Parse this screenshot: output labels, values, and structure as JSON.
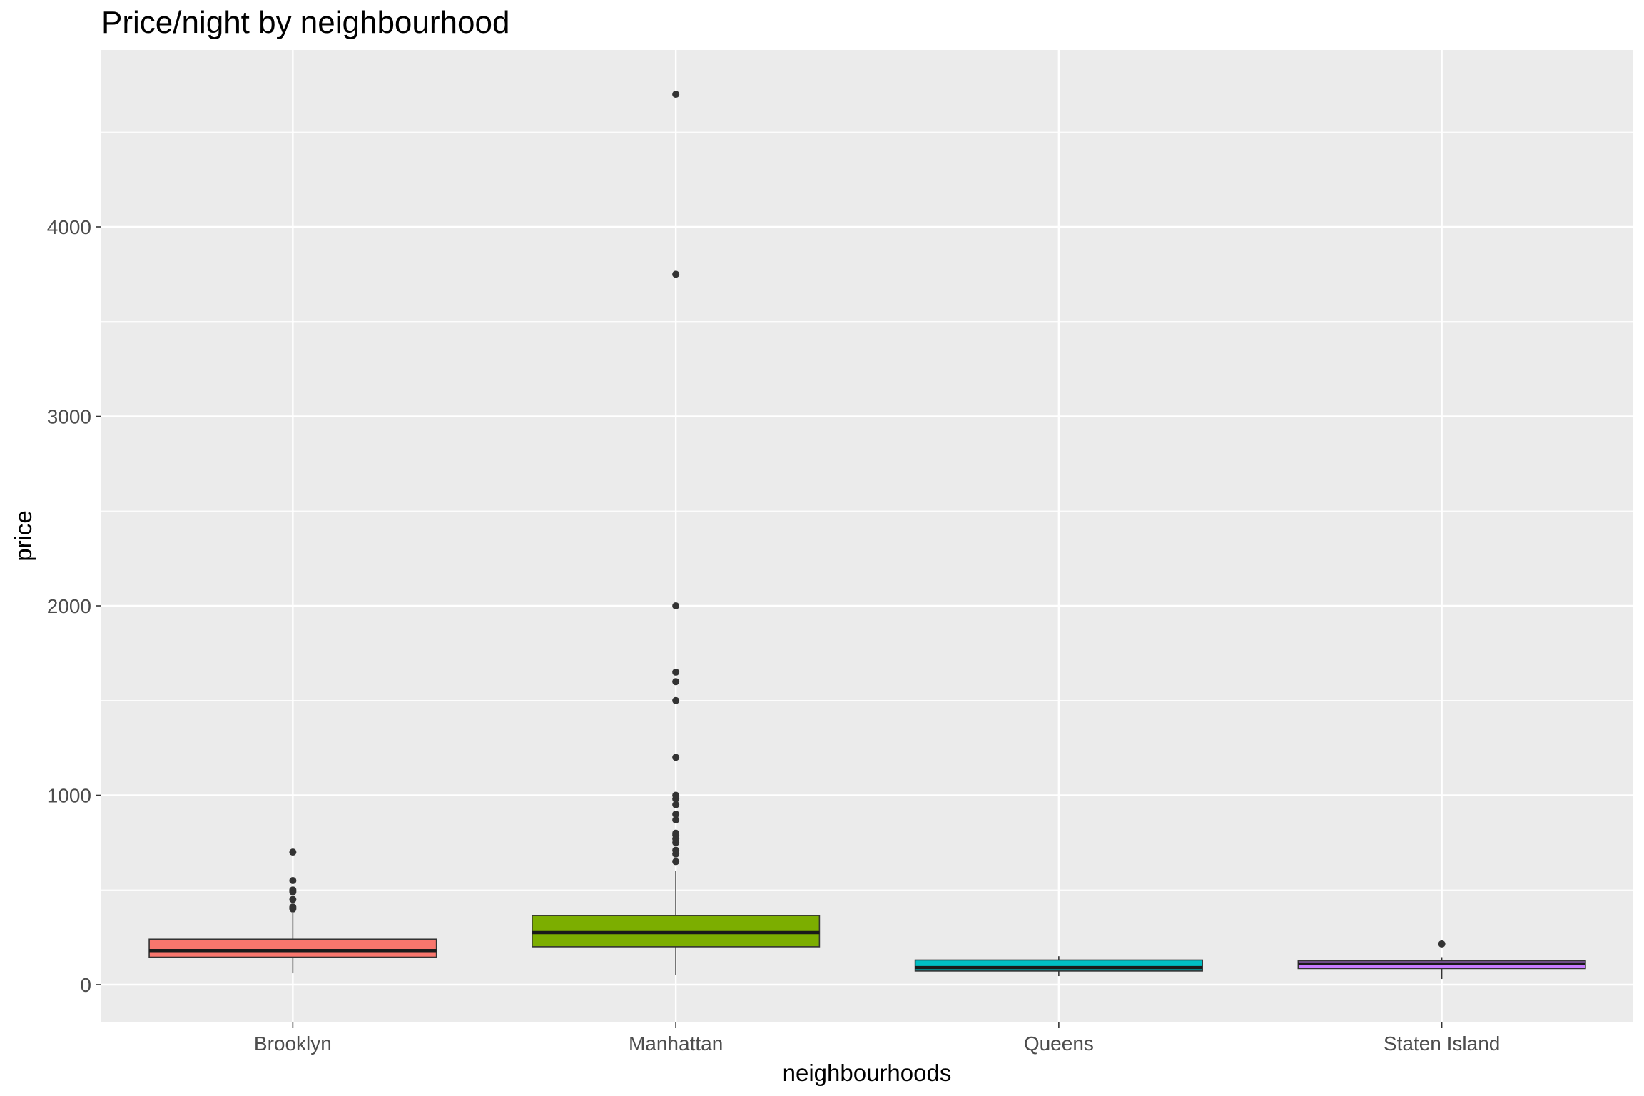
{
  "chart_data": {
    "type": "boxplot",
    "title": "Price/night by neighbourhood",
    "xlabel": "neighbourhoods",
    "ylabel": "price",
    "ylim": [
      -200,
      4950
    ],
    "yticks": [
      0,
      1000,
      2000,
      3000,
      4000
    ],
    "ytick_labels": [
      "0",
      "1000",
      "2000",
      "3000",
      "4000"
    ],
    "grid": true,
    "legend": "none",
    "categories": [
      "Brooklyn",
      "Manhattan",
      "Queens",
      "Staten Island"
    ],
    "boxes": [
      {
        "name": "Brooklyn",
        "color": "#F8766D",
        "whisker_low": 60,
        "q1": 145,
        "median": 180,
        "q3": 240,
        "whisker_high": 380,
        "outliers": [
          400,
          410,
          450,
          490,
          500,
          550,
          700
        ]
      },
      {
        "name": "Manhattan",
        "color": "#7CAE00",
        "whisker_low": 50,
        "q1": 200,
        "median": 275,
        "q3": 365,
        "whisker_high": 600,
        "outliers": [
          650,
          690,
          710,
          750,
          770,
          790,
          800,
          870,
          900,
          950,
          980,
          1000,
          1200,
          1500,
          1600,
          1650,
          2000,
          3750,
          4700
        ]
      },
      {
        "name": "Queens",
        "color": "#00BFC4",
        "whisker_low": 45,
        "q1": 72,
        "median": 90,
        "q3": 130,
        "whisker_high": 150,
        "outliers": []
      },
      {
        "name": "Staten Island",
        "color": "#C77CFF",
        "whisker_low": 30,
        "q1": 85,
        "median": 110,
        "q3": 125,
        "whisker_high": 145,
        "outliers": [
          215
        ]
      }
    ]
  }
}
